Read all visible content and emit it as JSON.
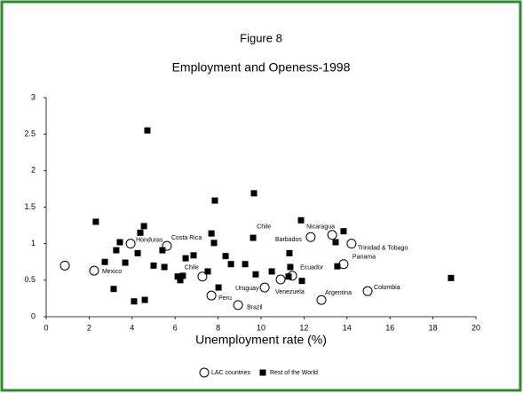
{
  "chart_data": {
    "type": "scatter",
    "figure_label": "Figure 8",
    "title": "Employment and Openess-1998",
    "x_label": "Unemployment rate (%)",
    "xlim": [
      0,
      20
    ],
    "xticks": [
      0,
      2,
      4,
      6,
      8,
      10,
      12,
      14,
      16,
      18,
      20
    ],
    "ylim": [
      0,
      3
    ],
    "yticks": [
      0,
      0.5,
      1,
      1.5,
      2,
      2.5,
      3
    ],
    "series": [
      {
        "name": "LAC countries",
        "marker": "circle",
        "color": "#000000",
        "x": [
          0.87,
          2.23,
          3.93,
          5.62,
          7.27,
          7.69,
          8.93,
          10.17,
          10.91,
          11.45,
          12.31,
          13.31,
          14.21,
          13.84,
          12.81,
          14.96
        ],
        "values": [
          0.7,
          0.63,
          1.0,
          0.97,
          0.55,
          0.29,
          0.16,
          0.4,
          0.51,
          0.56,
          1.09,
          1.12,
          1.0,
          0.72,
          0.23,
          0.35
        ],
        "labels": [
          null,
          "Mexico",
          "Honduras",
          "Costa Rica",
          "Chile",
          "Peru",
          "Brazil",
          "Uruguay",
          "Venezuela",
          "Ecuador",
          "Barbados",
          "Nicaragua",
          "Trinidad & Tobago",
          "Panama",
          "Argentina",
          "Colombia"
        ]
      },
      {
        "name": "Rest of the World",
        "marker": "square",
        "color": "#000000",
        "x": [
          2.31,
          2.73,
          3.14,
          3.26,
          3.43,
          3.68,
          4.09,
          4.26,
          4.38,
          4.55,
          4.59,
          4.71,
          5.0,
          5.41,
          5.5,
          6.12,
          6.24,
          6.36,
          6.49,
          6.86,
          7.52,
          7.69,
          7.81,
          7.85,
          8.02,
          8.35,
          8.6,
          9.26,
          9.63,
          9.67,
          9.75,
          10.5,
          11.28,
          11.32,
          11.36,
          11.86,
          11.9,
          13.47,
          13.55,
          13.84,
          18.84
        ],
        "values": [
          1.3,
          0.75,
          0.38,
          0.91,
          1.02,
          0.74,
          0.21,
          0.87,
          1.15,
          1.24,
          0.23,
          2.55,
          0.7,
          0.91,
          0.68,
          0.55,
          0.5,
          0.56,
          0.8,
          0.84,
          0.62,
          1.14,
          1.01,
          1.59,
          0.4,
          0.83,
          0.72,
          0.72,
          1.08,
          1.69,
          0.58,
          0.62,
          0.55,
          0.87,
          0.68,
          1.32,
          0.49,
          1.02,
          0.69,
          1.17,
          0.53
        ]
      }
    ],
    "annotations": [
      {
        "text": "Chile",
        "x": 9.8,
        "y": 1.23
      }
    ]
  }
}
